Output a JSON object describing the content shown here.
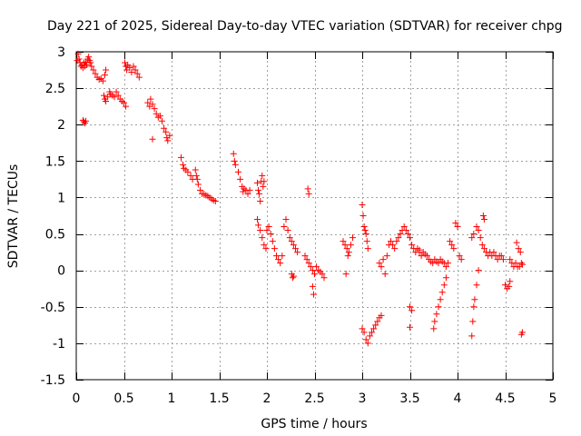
{
  "chart_data": {
    "type": "scatter",
    "title": "Day 221 of 2025, Sidereal Day-to-day VTEC variation (SDTVAR) for receiver chpg",
    "xlabel": "GPS time / hours",
    "ylabel": "SDTVAR / TECUs",
    "xlim": [
      0,
      5
    ],
    "ylim": [
      -1.5,
      3
    ],
    "x_ticks": [
      0,
      0.5,
      1,
      1.5,
      2,
      2.5,
      3,
      3.5,
      4,
      4.5,
      5
    ],
    "x_tick_labels": [
      "0",
      "0.5",
      "1",
      "1.5",
      "2",
      "2.5",
      "3",
      "3.5",
      "4",
      "4.5",
      "5"
    ],
    "y_ticks": [
      -1.5,
      -1,
      -0.5,
      0,
      0.5,
      1,
      1.5,
      2,
      2.5,
      3
    ],
    "y_tick_labels": [
      "-1.5",
      "-1",
      "-0.5",
      "0",
      "0.5",
      "1",
      "1.5",
      "2",
      "2.5",
      "3"
    ],
    "grid": true,
    "marker": "+",
    "color": "#ff0000",
    "series": [
      {
        "name": "SDTVAR",
        "points": [
          [
            0.01,
            2.88
          ],
          [
            0.02,
            2.97
          ],
          [
            0.03,
            2.9
          ],
          [
            0.04,
            2.85
          ],
          [
            0.05,
            2.8
          ],
          [
            0.06,
            2.82
          ],
          [
            0.07,
            2.78
          ],
          [
            0.08,
            2.85
          ],
          [
            0.09,
            2.8
          ],
          [
            0.1,
            2.86
          ],
          [
            0.11,
            2.82
          ],
          [
            0.12,
            2.9
          ],
          [
            0.13,
            2.93
          ],
          [
            0.14,
            2.88
          ],
          [
            0.15,
            2.85
          ],
          [
            0.16,
            2.8
          ],
          [
            0.07,
            2.06
          ],
          [
            0.08,
            2.04
          ],
          [
            0.09,
            2.02
          ],
          [
            0.1,
            2.05
          ],
          [
            0.18,
            2.75
          ],
          [
            0.2,
            2.7
          ],
          [
            0.22,
            2.65
          ],
          [
            0.24,
            2.62
          ],
          [
            0.26,
            2.63
          ],
          [
            0.28,
            2.6
          ],
          [
            0.3,
            2.68
          ],
          [
            0.31,
            2.75
          ],
          [
            0.29,
            2.4
          ],
          [
            0.3,
            2.35
          ],
          [
            0.31,
            2.32
          ],
          [
            0.33,
            2.38
          ],
          [
            0.35,
            2.45
          ],
          [
            0.36,
            2.42
          ],
          [
            0.38,
            2.4
          ],
          [
            0.4,
            2.38
          ],
          [
            0.42,
            2.45
          ],
          [
            0.44,
            2.4
          ],
          [
            0.46,
            2.35
          ],
          [
            0.48,
            2.32
          ],
          [
            0.5,
            2.3
          ],
          [
            0.52,
            2.25
          ],
          [
            0.51,
            2.85
          ],
          [
            0.52,
            2.8
          ],
          [
            0.53,
            2.75
          ],
          [
            0.54,
            2.82
          ],
          [
            0.56,
            2.78
          ],
          [
            0.58,
            2.72
          ],
          [
            0.6,
            2.8
          ],
          [
            0.62,
            2.75
          ],
          [
            0.64,
            2.7
          ],
          [
            0.66,
            2.65
          ],
          [
            0.75,
            2.3
          ],
          [
            0.77,
            2.25
          ],
          [
            0.78,
            2.35
          ],
          [
            0.8,
            2.28
          ],
          [
            0.82,
            2.22
          ],
          [
            0.84,
            2.15
          ],
          [
            0.86,
            2.1
          ],
          [
            0.88,
            2.12
          ],
          [
            0.9,
            2.05
          ],
          [
            0.92,
            1.95
          ],
          [
            0.94,
            1.9
          ],
          [
            0.95,
            1.82
          ],
          [
            0.96,
            1.78
          ],
          [
            0.98,
            1.85
          ],
          [
            0.8,
            1.8
          ],
          [
            1.1,
            1.55
          ],
          [
            1.12,
            1.45
          ],
          [
            1.13,
            1.4
          ],
          [
            1.15,
            1.38
          ],
          [
            1.17,
            1.35
          ],
          [
            1.2,
            1.3
          ],
          [
            1.22,
            1.25
          ],
          [
            1.25,
            1.38
          ],
          [
            1.26,
            1.3
          ],
          [
            1.27,
            1.25
          ],
          [
            1.28,
            1.18
          ],
          [
            1.3,
            1.1
          ],
          [
            1.32,
            1.05
          ],
          [
            1.34,
            1.05
          ],
          [
            1.36,
            1.03
          ],
          [
            1.38,
            1.02
          ],
          [
            1.4,
            1.0
          ],
          [
            1.42,
            0.98
          ],
          [
            1.44,
            0.96
          ],
          [
            1.46,
            0.95
          ],
          [
            1.65,
            1.6
          ],
          [
            1.66,
            1.5
          ],
          [
            1.67,
            1.45
          ],
          [
            1.7,
            1.35
          ],
          [
            1.72,
            1.25
          ],
          [
            1.74,
            1.15
          ],
          [
            1.75,
            1.08
          ],
          [
            1.76,
            1.12
          ],
          [
            1.78,
            1.1
          ],
          [
            1.8,
            1.05
          ],
          [
            1.82,
            1.1
          ],
          [
            1.9,
            1.2
          ],
          [
            1.91,
            1.1
          ],
          [
            1.92,
            1.05
          ],
          [
            1.93,
            0.95
          ],
          [
            1.94,
            1.22
          ],
          [
            1.95,
            1.3
          ],
          [
            1.96,
            1.15
          ],
          [
            1.97,
            1.22
          ],
          [
            1.9,
            0.7
          ],
          [
            1.91,
            0.62
          ],
          [
            1.93,
            0.55
          ],
          [
            1.95,
            0.45
          ],
          [
            1.97,
            0.35
          ],
          [
            1.99,
            0.3
          ],
          [
            2.0,
            0.55
          ],
          [
            2.02,
            0.6
          ],
          [
            2.04,
            0.5
          ],
          [
            2.06,
            0.4
          ],
          [
            2.08,
            0.3
          ],
          [
            2.1,
            0.2
          ],
          [
            2.12,
            0.15
          ],
          [
            2.14,
            0.1
          ],
          [
            2.16,
            0.2
          ],
          [
            2.18,
            0.6
          ],
          [
            2.2,
            0.7
          ],
          [
            2.22,
            0.55
          ],
          [
            2.24,
            0.45
          ],
          [
            2.26,
            0.4
          ],
          [
            2.28,
            0.35
          ],
          [
            2.3,
            0.3
          ],
          [
            2.32,
            0.25
          ],
          [
            2.26,
            -0.05
          ],
          [
            2.27,
            -0.1
          ],
          [
            2.28,
            -0.08
          ],
          [
            2.4,
            0.2
          ],
          [
            2.42,
            0.15
          ],
          [
            2.44,
            0.1
          ],
          [
            2.46,
            0.05
          ],
          [
            2.48,
            0.0
          ],
          [
            2.5,
            -0.05
          ],
          [
            2.52,
            0.05
          ],
          [
            2.54,
            0.0
          ],
          [
            2.56,
            -0.02
          ],
          [
            2.58,
            -0.05
          ],
          [
            2.6,
            -0.1
          ],
          [
            2.43,
            1.12
          ],
          [
            2.44,
            1.05
          ],
          [
            2.48,
            -0.22
          ],
          [
            2.49,
            -0.33
          ],
          [
            2.8,
            0.4
          ],
          [
            2.82,
            0.35
          ],
          [
            2.84,
            0.3
          ],
          [
            2.86,
            0.25
          ],
          [
            2.88,
            0.35
          ],
          [
            2.9,
            0.45
          ],
          [
            2.83,
            -0.05
          ],
          [
            2.85,
            0.2
          ],
          [
            3.0,
            0.9
          ],
          [
            3.01,
            0.75
          ],
          [
            3.02,
            0.6
          ],
          [
            3.03,
            0.55
          ],
          [
            3.04,
            0.5
          ],
          [
            3.05,
            0.4
          ],
          [
            3.06,
            0.3
          ],
          [
            3.0,
            -0.8
          ],
          [
            3.02,
            -0.85
          ],
          [
            3.04,
            -0.95
          ],
          [
            3.06,
            -1.0
          ],
          [
            3.08,
            -0.9
          ],
          [
            3.1,
            -0.85
          ],
          [
            3.12,
            -0.8
          ],
          [
            3.14,
            -0.75
          ],
          [
            3.16,
            -0.7
          ],
          [
            3.18,
            -0.65
          ],
          [
            3.2,
            -0.62
          ],
          [
            3.18,
            0.1
          ],
          [
            3.2,
            0.05
          ],
          [
            3.22,
            0.15
          ],
          [
            3.24,
            -0.05
          ],
          [
            3.26,
            0.2
          ],
          [
            3.28,
            0.35
          ],
          [
            3.3,
            0.4
          ],
          [
            3.32,
            0.35
          ],
          [
            3.34,
            0.3
          ],
          [
            3.36,
            0.4
          ],
          [
            3.38,
            0.45
          ],
          [
            3.4,
            0.5
          ],
          [
            3.42,
            0.55
          ],
          [
            3.44,
            0.6
          ],
          [
            3.46,
            0.55
          ],
          [
            3.48,
            0.5
          ],
          [
            3.5,
            0.45
          ],
          [
            3.52,
            0.35
          ],
          [
            3.54,
            0.3
          ],
          [
            3.56,
            0.25
          ],
          [
            3.58,
            0.3
          ],
          [
            3.6,
            0.28
          ],
          [
            3.5,
            -0.5
          ],
          [
            3.52,
            -0.55
          ],
          [
            3.5,
            -0.78
          ],
          [
            3.6,
            0.25
          ],
          [
            3.62,
            0.2
          ],
          [
            3.64,
            0.25
          ],
          [
            3.66,
            0.22
          ],
          [
            3.68,
            0.2
          ],
          [
            3.7,
            0.15
          ],
          [
            3.72,
            0.12
          ],
          [
            3.74,
            0.1
          ],
          [
            3.76,
            0.15
          ],
          [
            3.78,
            0.12
          ],
          [
            3.8,
            0.1
          ],
          [
            3.82,
            0.15
          ],
          [
            3.84,
            0.12
          ],
          [
            3.86,
            0.1
          ],
          [
            3.88,
            0.05
          ],
          [
            3.9,
            0.1
          ],
          [
            3.75,
            -0.8
          ],
          [
            3.76,
            -0.7
          ],
          [
            3.78,
            -0.6
          ],
          [
            3.8,
            -0.5
          ],
          [
            3.82,
            -0.4
          ],
          [
            3.84,
            -0.3
          ],
          [
            3.86,
            -0.2
          ],
          [
            3.88,
            -0.1
          ],
          [
            3.92,
            0.4
          ],
          [
            3.94,
            0.35
          ],
          [
            3.96,
            0.3
          ],
          [
            3.98,
            0.65
          ],
          [
            4.0,
            0.6
          ],
          [
            4.02,
            0.2
          ],
          [
            4.04,
            0.15
          ],
          [
            4.15,
            -0.9
          ],
          [
            4.16,
            -0.7
          ],
          [
            4.17,
            -0.5
          ],
          [
            4.18,
            -0.4
          ],
          [
            4.2,
            -0.2
          ],
          [
            4.22,
            0.0
          ],
          [
            4.15,
            0.45
          ],
          [
            4.17,
            0.5
          ],
          [
            4.2,
            0.6
          ],
          [
            4.22,
            0.55
          ],
          [
            4.24,
            0.45
          ],
          [
            4.26,
            0.35
          ],
          [
            4.28,
            0.3
          ],
          [
            4.3,
            0.25
          ],
          [
            4.32,
            0.2
          ],
          [
            4.34,
            0.25
          ],
          [
            4.36,
            0.2
          ],
          [
            4.38,
            0.25
          ],
          [
            4.4,
            0.2
          ],
          [
            4.42,
            0.15
          ],
          [
            4.44,
            0.2
          ],
          [
            4.46,
            0.2
          ],
          [
            4.48,
            0.15
          ],
          [
            4.27,
            0.75
          ],
          [
            4.28,
            0.7
          ],
          [
            4.5,
            -0.2
          ],
          [
            4.52,
            -0.25
          ],
          [
            4.54,
            -0.22
          ],
          [
            4.55,
            -0.15
          ],
          [
            4.55,
            0.15
          ],
          [
            4.57,
            0.1
          ],
          [
            4.59,
            0.05
          ],
          [
            4.61,
            0.1
          ],
          [
            4.63,
            0.05
          ],
          [
            4.65,
            0.05
          ],
          [
            4.67,
            0.1
          ],
          [
            4.62,
            0.38
          ],
          [
            4.64,
            0.3
          ],
          [
            4.66,
            0.25
          ],
          [
            4.68,
            0.08
          ],
          [
            4.67,
            -0.88
          ],
          [
            4.68,
            -0.85
          ]
        ]
      }
    ]
  }
}
